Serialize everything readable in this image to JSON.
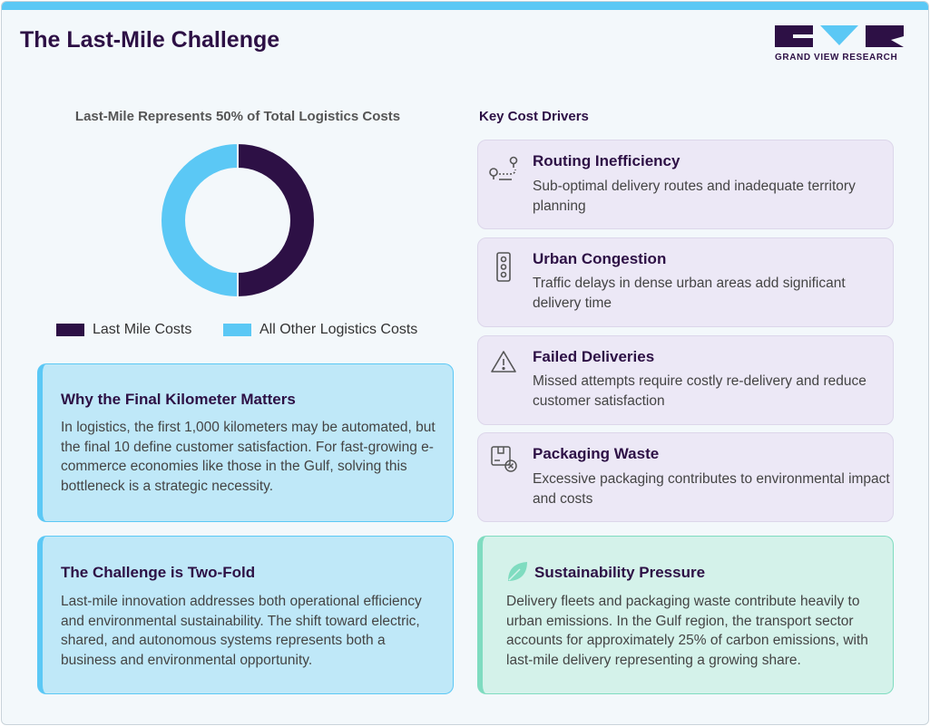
{
  "header": {
    "title": "The Last-Mile Challenge",
    "logo_text": "GRAND VIEW RESEARCH"
  },
  "chart_data": {
    "type": "pie",
    "title": "Last-Mile Represents 50% of Total Logistics Costs",
    "categories": [
      "Last Mile Costs",
      "All Other Logistics Costs"
    ],
    "values": [
      50,
      50
    ],
    "colors": [
      "#2d1045",
      "#5bc8f5"
    ],
    "donut": true
  },
  "info_boxes": [
    {
      "title": "Why the Final Kilometer Matters",
      "text": "In logistics, the first 1,000 kilometers may be automated, but the final 10 define customer satisfaction. For fast-growing e-commerce economies like those in the Gulf, solving this bottleneck is a strategic necessity."
    },
    {
      "title": "The Challenge is Two-Fold",
      "text": "Last-mile innovation addresses both operational efficiency and environmental sustainability. The shift toward electric, shared, and autonomous systems represents both a business and environmental opportunity."
    }
  ],
  "drivers": {
    "title": "Key Cost Drivers",
    "items": [
      {
        "title": "Routing Inefficiency",
        "text": "Sub-optimal delivery routes and inadequate territory planning"
      },
      {
        "title": "Urban Congestion",
        "text": "Traffic delays in dense urban areas add significant delivery time"
      },
      {
        "title": "Failed Deliveries",
        "text": "Missed attempts require costly re-delivery and reduce customer satisfaction"
      },
      {
        "title": "Packaging Waste",
        "text": "Excessive packaging contributes to environmental impact and costs"
      }
    ]
  },
  "sustainability": {
    "title": "Sustainability Pressure",
    "text": "Delivery fleets and packaging waste contribute heavily to urban emissions. In the Gulf region, the transport sector accounts for approximately 25% of carbon emissions, with last-mile delivery representing a growing share."
  }
}
